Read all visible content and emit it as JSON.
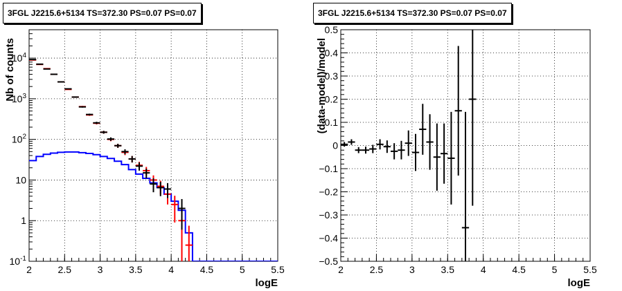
{
  "chart_data": [
    {
      "type": "line",
      "title": "3FGL J2215.6+5134 TS=372.30 PS=0.07 PS=0.07",
      "xlabel": "logE",
      "ylabel": "Nb of counts",
      "xlim": [
        2,
        5.5
      ],
      "ylim": [
        0.1,
        50000
      ],
      "yscale": "log",
      "grid": true,
      "x_ticks": [
        "2",
        "2.5",
        "3",
        "3.5",
        "4",
        "4.5",
        "5",
        "5.5"
      ],
      "y_ticks": [
        "10^{-1}",
        "1",
        "10",
        "10^{2}",
        "10^{3}",
        "10^{4}"
      ],
      "series": [
        {
          "style": "step",
          "color": "#0000ff",
          "bin_width": 0.1,
          "x": [
            2.0,
            2.1,
            2.2,
            2.3,
            2.4,
            2.5,
            2.6,
            2.7,
            2.8,
            2.9,
            3.0,
            3.1,
            3.2,
            3.3,
            3.4,
            3.5,
            3.6,
            3.7,
            3.8,
            3.9,
            4.0,
            4.1,
            4.2,
            4.3,
            4.4,
            4.5,
            4.6,
            4.7,
            4.8,
            4.9,
            5.0,
            5.1,
            5.2,
            5.3,
            5.4
          ],
          "y": [
            30,
            38,
            43,
            46,
            48,
            49,
            49,
            47,
            45,
            42,
            38,
            34,
            29,
            24,
            18,
            14,
            11,
            8.5,
            6.5,
            4.5,
            3.0,
            1.8,
            0.5,
            0.1,
            0.1,
            0.1,
            0.1,
            0.1,
            0.1,
            0.1,
            0.1,
            0.1,
            0.1,
            0.1,
            0.1
          ]
        },
        {
          "style": "errorbar",
          "color": "#ff0000",
          "x": [
            2.05,
            2.15,
            2.25,
            2.35,
            2.45,
            2.55,
            2.65,
            2.75,
            2.85,
            2.95,
            3.05,
            3.15,
            3.25,
            3.35,
            3.45,
            3.55,
            3.65,
            3.75,
            3.85,
            3.95,
            4.05,
            4.15,
            4.25
          ],
          "y": [
            9000,
            7000,
            5500,
            4000,
            2600,
            1700,
            1100,
            640,
            400,
            250,
            150,
            100,
            70,
            48,
            33,
            23,
            17,
            10,
            7,
            4.5,
            2.5,
            1.0,
            0.25
          ],
          "yerr": [
            100,
            90,
            80,
            65,
            50,
            40,
            32,
            25,
            20,
            16,
            12,
            10,
            8,
            7,
            6,
            5,
            4,
            3,
            2.6,
            2,
            1.6,
            1.0,
            0.5
          ]
        },
        {
          "style": "errorbar",
          "color": "#000000",
          "x": [
            2.05,
            2.15,
            2.25,
            2.35,
            2.45,
            2.55,
            2.65,
            2.75,
            2.85,
            2.95,
            3.05,
            3.15,
            3.25,
            3.35,
            3.45,
            3.55,
            3.65,
            3.75,
            3.85,
            3.95,
            4.15
          ],
          "y": [
            9200,
            7100,
            5400,
            4000,
            2600,
            1750,
            1100,
            630,
            410,
            255,
            150,
            102,
            70,
            50,
            33,
            22,
            15,
            8,
            6.5,
            6,
            2
          ],
          "yerr": [
            100,
            90,
            80,
            65,
            50,
            40,
            32,
            25,
            20,
            16,
            12,
            10,
            8,
            7,
            6,
            5,
            4,
            3,
            2.5,
            2.4,
            1.4
          ]
        }
      ]
    },
    {
      "type": "scatter",
      "title": "3FGL J2215.6+5134 TS=372.30 PS=0.07 PS=0.07",
      "xlabel": "logE",
      "ylabel": "(data-model)/model",
      "xlim": [
        2,
        5.5
      ],
      "ylim": [
        -0.5,
        0.5
      ],
      "grid": true,
      "x_ticks": [
        "2",
        "2.5",
        "3",
        "3.5",
        "4",
        "4.5",
        "5",
        "5.5"
      ],
      "y_ticks": [
        "−0.5",
        "−0.4",
        "−0.3",
        "−0.2",
        "−0.1",
        "0",
        "0.1",
        "0.2",
        "0.3",
        "0.4",
        "0.5"
      ],
      "series": [
        {
          "style": "errorbar",
          "color": "#000000",
          "x": [
            2.05,
            2.15,
            2.25,
            2.35,
            2.45,
            2.55,
            2.65,
            2.75,
            2.85,
            2.95,
            3.05,
            3.15,
            3.25,
            3.35,
            3.45,
            3.55,
            3.65,
            3.75,
            3.85
          ],
          "y": [
            0.005,
            0.015,
            -0.02,
            -0.02,
            -0.015,
            0.005,
            -0.005,
            -0.025,
            -0.02,
            0.01,
            -0.03,
            0.07,
            0.015,
            -0.05,
            -0.035,
            -0.055,
            0.15,
            -0.355,
            0.2
          ],
          "yerr": [
            0.01,
            0.012,
            0.013,
            0.015,
            0.018,
            0.022,
            0.027,
            0.035,
            0.04,
            0.055,
            0.08,
            0.11,
            0.12,
            0.145,
            0.13,
            0.2,
            0.28,
            0.5,
            0.46
          ]
        }
      ]
    }
  ]
}
